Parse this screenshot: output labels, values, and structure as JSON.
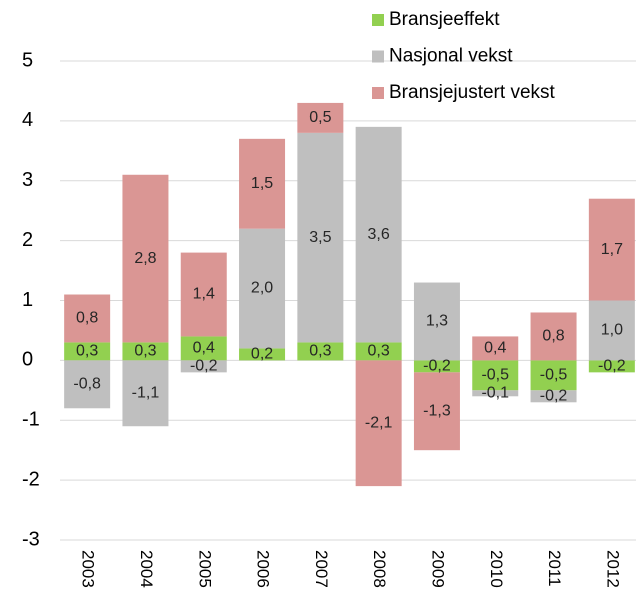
{
  "chart_data": {
    "type": "stacked_bar",
    "categories": [
      "2003",
      "2004",
      "2005",
      "2006",
      "2007",
      "2008",
      "2009",
      "2010",
      "2011",
      "2012"
    ],
    "series": [
      {
        "name": "Bransjeeffekt",
        "color": "#92d050",
        "values": [
          0.3,
          0.3,
          0.4,
          0.2,
          0.3,
          0.3,
          -0.2,
          -0.5,
          -0.5,
          -0.2
        ],
        "value_labels": [
          "0,3",
          "0,3",
          "0,4",
          "0,2",
          "0,3",
          "0,3",
          "-0,2",
          "-0,5",
          "-0,5",
          "-0,2"
        ]
      },
      {
        "name": "Nasjonal vekst",
        "color": "#bfbfbf",
        "values": [
          -0.8,
          -1.1,
          -0.2,
          2.0,
          3.5,
          3.6,
          1.3,
          -0.1,
          -0.2,
          1.0
        ],
        "value_labels": [
          "-0,8",
          "-1,1",
          "-0,2",
          "2,0",
          "3,5",
          "3,6",
          "1,3",
          "-0,1",
          "-0,2",
          "1,0"
        ]
      },
      {
        "name": "Bransjejustert vekst",
        "color": "#da9694",
        "values": [
          0.8,
          2.8,
          1.4,
          1.5,
          0.5,
          -2.1,
          -1.3,
          0.4,
          0.8,
          1.7
        ],
        "value_labels": [
          "0,8",
          "2,8",
          "1,4",
          "1,5",
          "0,5",
          "-2,1",
          "-1,3",
          "0,4",
          "0,8",
          "1,7"
        ]
      }
    ],
    "ylim": [
      -3,
      5
    ],
    "yticks": [
      -3,
      -2,
      -1,
      0,
      1,
      2,
      3,
      4,
      5
    ],
    "grid": true
  }
}
